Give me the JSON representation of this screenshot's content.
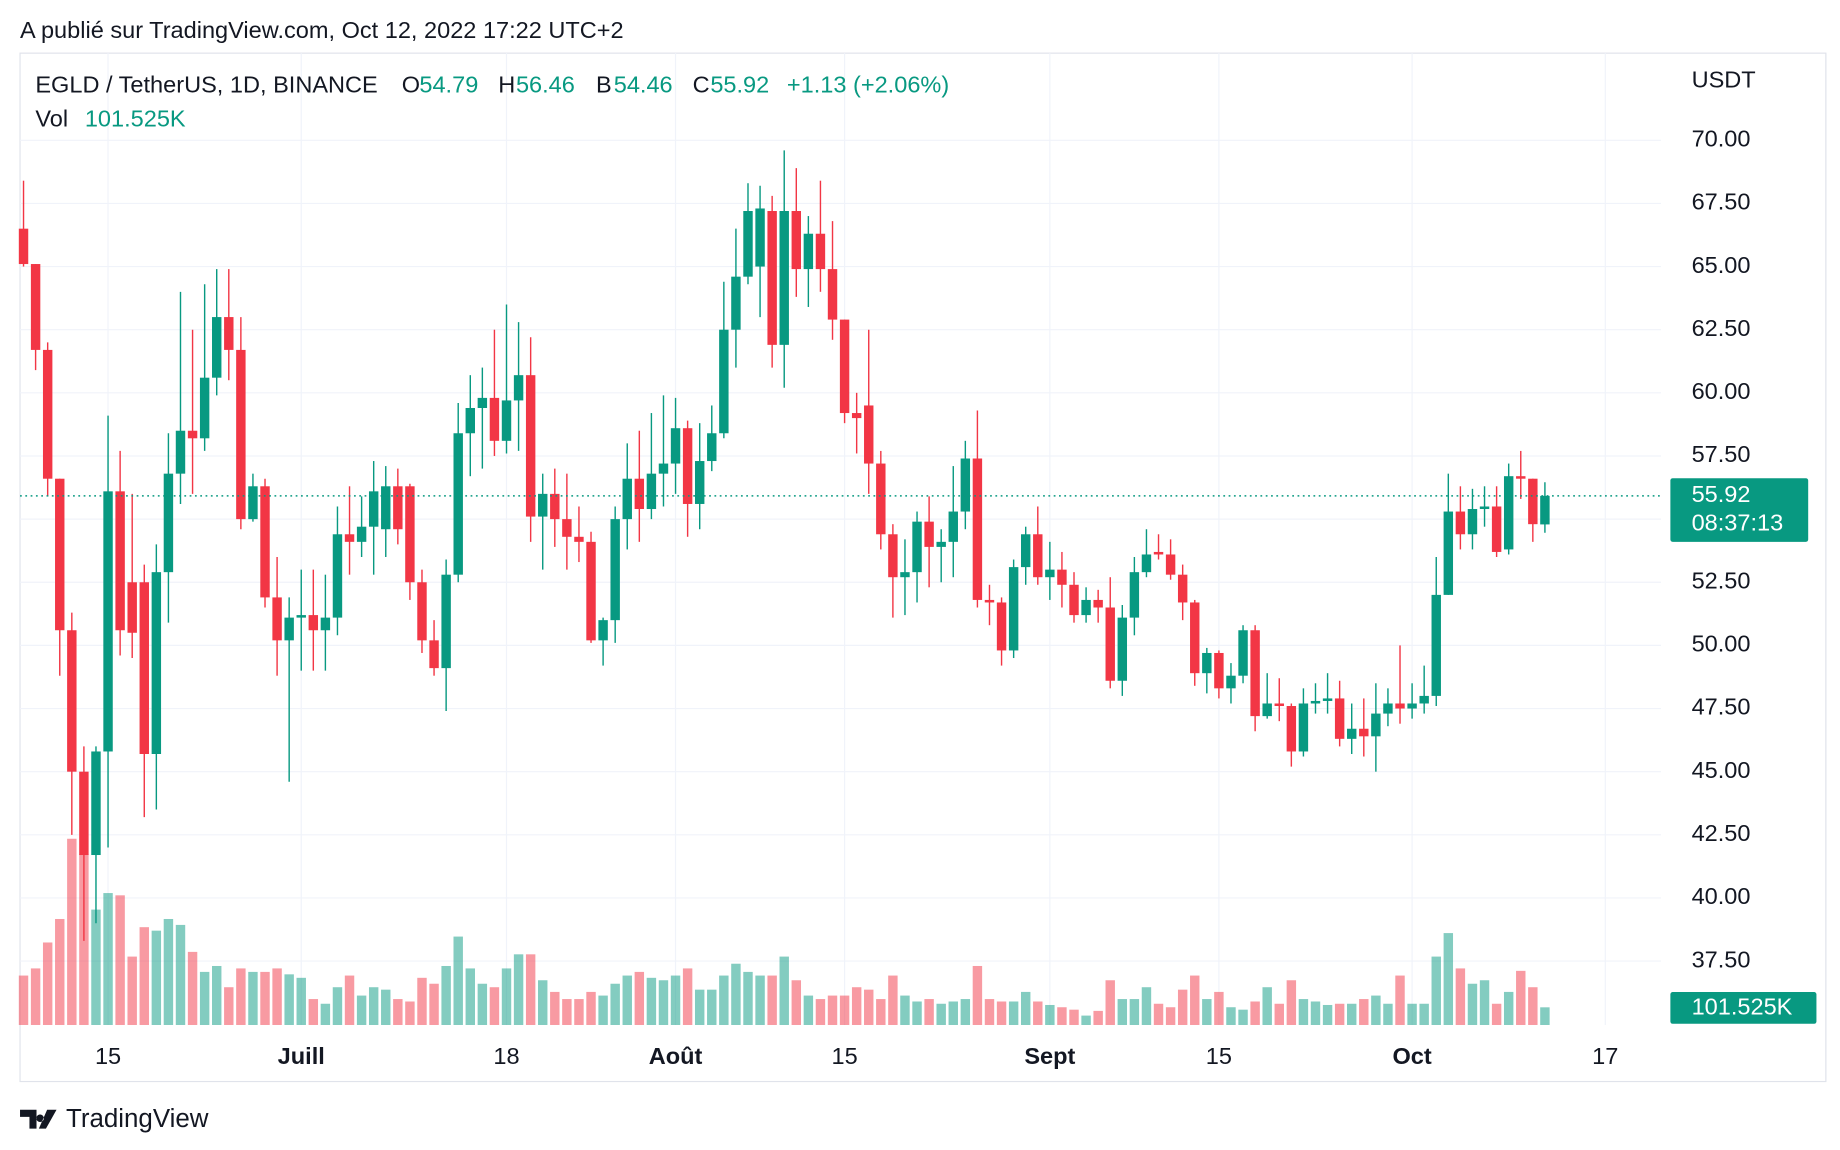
{
  "published": "A publié sur TradingView.com, Oct 12, 2022 17:22 UTC+2",
  "footer": "TradingView",
  "chart_data": {
    "type": "candlestick",
    "symbol": "EGLD / TetherUS, 1D, BINANCE",
    "currency": "USDT",
    "ohlc_letters": [
      "O",
      "H",
      "B",
      "C"
    ],
    "change_label": "+1.13 (+2.06%)",
    "countdown": "08:37:13",
    "up_color": "#089981",
    "down_color": "#f23645",
    "grid": true,
    "xlim": [
      -0.29,
      135.61
    ],
    "xticks": [
      {
        "value": 7,
        "label": "15"
      },
      {
        "value": 23,
        "label": "Juill"
      },
      {
        "value": 40,
        "label": "18"
      },
      {
        "value": 54,
        "label": "Août"
      },
      {
        "value": 68,
        "label": "15"
      },
      {
        "value": 85,
        "label": "Sept"
      },
      {
        "value": 99,
        "label": "15"
      },
      {
        "value": 115,
        "label": "Oct"
      },
      {
        "value": 131,
        "label": "17"
      }
    ],
    "ylim": [
      34.97,
      73.45
    ],
    "yticks": [
      {
        "value": 37.5,
        "label": "37.50"
      },
      {
        "value": 40,
        "label": "40.00"
      },
      {
        "value": 42.5,
        "label": "42.50"
      },
      {
        "value": 45,
        "label": "45.00"
      },
      {
        "value": 47.5,
        "label": "47.50"
      },
      {
        "value": 50,
        "label": "50.00"
      },
      {
        "value": 52.5,
        "label": "52.50"
      },
      {
        "value": 55,
        "label": "55.00"
      },
      {
        "value": 57.5,
        "label": "57.50"
      },
      {
        "value": 60,
        "label": "60.00"
      },
      {
        "value": 62.5,
        "label": "62.50"
      },
      {
        "value": 65,
        "label": "65.00"
      },
      {
        "value": 67.5,
        "label": "67.50"
      },
      {
        "value": 70,
        "label": "70.00"
      }
    ],
    "open": [
      66.5,
      65.1,
      61.7,
      56.6,
      50.6,
      45.0,
      41.7,
      45.8,
      56.1,
      52.5,
      52.5,
      45.7,
      52.9,
      56.8,
      58.5,
      58.2,
      60.6,
      63.0,
      61.7,
      55.0,
      56.3,
      51.9,
      50.2,
      51.1,
      51.2,
      50.6,
      51.1,
      54.4,
      54.1,
      54.7,
      54.6,
      56.3,
      56.3,
      52.5,
      50.2,
      49.1,
      52.8,
      58.4,
      59.4,
      59.8,
      58.1,
      59.7,
      60.7,
      55.1,
      56.0,
      55.0,
      54.3,
      54.1,
      50.2,
      51.0,
      55.0,
      56.6,
      55.4,
      56.8,
      57.2,
      58.6,
      55.6,
      57.3,
      58.4,
      62.5,
      64.6,
      65.0,
      67.2,
      61.9,
      67.2,
      64.9,
      66.3,
      64.9,
      62.9,
      59.2,
      59.5,
      57.2,
      54.4,
      52.7,
      52.9,
      54.9,
      53.9,
      54.1,
      55.3,
      57.4,
      51.8,
      51.7,
      49.8,
      53.1,
      54.4,
      52.7,
      53.0,
      52.4,
      51.2,
      51.8,
      51.5,
      48.6,
      51.1,
      52.9,
      53.7,
      53.6,
      52.8,
      51.7,
      48.9,
      49.7,
      48.3,
      48.8,
      50.6,
      47.2,
      47.7,
      47.6,
      45.8,
      47.7,
      47.8,
      47.9,
      46.3,
      46.7,
      46.4,
      47.3,
      47.7,
      47.5,
      47.7,
      48.0,
      52.0,
      55.3,
      54.4,
      55.4,
      55.5,
      53.8,
      56.7,
      56.6,
      54.79
    ],
    "high": [
      68.4,
      65.1,
      62.0,
      56.6,
      51.3,
      46.0,
      46.0,
      59.1,
      57.7,
      56.0,
      53.2,
      54.0,
      58.4,
      64.0,
      62.5,
      64.3,
      64.9,
      64.9,
      63.0,
      56.8,
      56.6,
      53.5,
      51.9,
      53.0,
      53.0,
      52.8,
      55.5,
      56.3,
      55.9,
      57.3,
      57.1,
      57.0,
      56.4,
      53.0,
      51.0,
      53.4,
      59.6,
      60.7,
      61.0,
      62.5,
      63.5,
      62.8,
      62.2,
      56.8,
      57.0,
      56.8,
      55.5,
      54.5,
      51.1,
      55.5,
      58.0,
      58.5,
      59.2,
      59.9,
      59.8,
      58.9,
      58.8,
      59.5,
      64.4,
      66.5,
      68.3,
      68.2,
      67.8,
      69.6,
      68.9,
      67.0,
      68.4,
      66.8,
      62.9,
      60.0,
      62.5,
      57.7,
      54.8,
      54.2,
      55.3,
      55.9,
      54.6,
      57.1,
      58.1,
      59.3,
      52.4,
      51.9,
      53.4,
      54.7,
      55.5,
      54.1,
      53.7,
      52.9,
      52.3,
      52.2,
      52.7,
      51.6,
      53.5,
      54.6,
      54.4,
      54.2,
      53.2,
      51.8,
      49.9,
      49.8,
      49.3,
      50.8,
      50.8,
      48.9,
      48.7,
      47.7,
      48.3,
      48.5,
      48.9,
      48.6,
      47.7,
      47.9,
      48.5,
      48.3,
      50.0,
      48.5,
      49.2,
      53.5,
      56.8,
      56.3,
      56.2,
      56.3,
      56.3,
      57.2,
      57.7,
      56.6,
      56.46
    ],
    "low": [
      65.0,
      60.9,
      55.9,
      48.8,
      42.5,
      38.3,
      39.0,
      42.0,
      49.6,
      49.5,
      43.2,
      43.5,
      50.9,
      55.6,
      56.0,
      57.7,
      59.9,
      60.5,
      54.6,
      54.9,
      51.5,
      48.8,
      44.6,
      49.0,
      49.0,
      49.0,
      50.4,
      52.8,
      53.5,
      52.8,
      53.5,
      54.0,
      51.8,
      49.7,
      48.8,
      47.4,
      52.5,
      56.7,
      57.0,
      57.5,
      57.6,
      57.7,
      54.1,
      53.0,
      53.9,
      53.0,
      53.3,
      50.1,
      49.2,
      50.1,
      53.8,
      54.1,
      55.0,
      55.5,
      56.0,
      54.3,
      54.6,
      56.9,
      58.2,
      61.0,
      64.3,
      63.0,
      61.0,
      60.2,
      63.8,
      63.4,
      64.0,
      62.1,
      58.8,
      57.6,
      56.0,
      53.8,
      51.1,
      51.2,
      51.7,
      52.3,
      52.5,
      52.7,
      54.6,
      51.5,
      50.8,
      49.2,
      49.5,
      52.4,
      52.4,
      51.8,
      51.5,
      50.9,
      50.9,
      50.9,
      48.3,
      48.0,
      50.4,
      52.7,
      53.4,
      52.6,
      51.0,
      48.4,
      48.1,
      47.9,
      47.7,
      48.5,
      46.6,
      47.1,
      47.0,
      45.2,
      45.6,
      47.3,
      47.3,
      46.0,
      45.7,
      45.6,
      45.0,
      46.8,
      46.9,
      47.1,
      47.3,
      47.6,
      52.0,
      53.8,
      53.8,
      54.7,
      53.5,
      53.6,
      55.8,
      54.1,
      54.46
    ],
    "close": [
      65.1,
      61.7,
      56.6,
      50.6,
      45.0,
      41.7,
      45.8,
      56.1,
      50.6,
      50.5,
      45.7,
      52.9,
      56.8,
      58.5,
      58.2,
      60.6,
      63.0,
      61.7,
      55.0,
      56.3,
      51.9,
      50.2,
      51.1,
      51.2,
      50.6,
      51.1,
      54.4,
      54.1,
      54.7,
      56.1,
      56.3,
      54.6,
      52.5,
      50.2,
      49.1,
      52.8,
      58.4,
      59.4,
      59.8,
      58.1,
      59.7,
      60.7,
      55.1,
      56.0,
      55.0,
      54.3,
      54.1,
      50.2,
      51.0,
      55.0,
      56.6,
      55.4,
      56.8,
      57.2,
      58.6,
      55.6,
      57.3,
      58.4,
      62.5,
      64.6,
      67.2,
      67.3,
      61.9,
      67.2,
      64.9,
      66.3,
      64.9,
      62.9,
      59.2,
      59.0,
      57.2,
      54.4,
      52.7,
      52.9,
      54.9,
      53.9,
      54.1,
      55.3,
      57.4,
      51.8,
      51.7,
      49.8,
      53.1,
      54.4,
      52.7,
      53.0,
      52.4,
      51.2,
      51.8,
      51.5,
      48.6,
      51.1,
      52.9,
      53.6,
      53.6,
      52.8,
      51.7,
      48.9,
      49.7,
      48.3,
      48.8,
      50.6,
      47.2,
      47.7,
      47.6,
      45.8,
      47.7,
      47.8,
      47.9,
      46.3,
      46.7,
      46.4,
      47.3,
      47.7,
      47.5,
      47.7,
      48.0,
      52.0,
      55.3,
      54.4,
      55.4,
      55.5,
      53.7,
      56.7,
      56.6,
      54.8,
      55.92
    ],
    "volume": {
      "name": "Vol",
      "last_label": "101.525K",
      "vlim": [
        0,
        1218.3
      ],
      "values": [
        284,
        325,
        474,
        609,
        1070,
        982,
        663,
        758,
        745,
        393,
        562,
        542,
        609,
        575,
        420,
        305,
        339,
        217,
        325,
        305,
        305,
        325,
        291,
        271,
        149,
        122,
        217,
        284,
        169,
        217,
        203,
        149,
        135,
        271,
        237,
        339,
        508,
        325,
        237,
        217,
        325,
        406,
        406,
        257,
        190,
        149,
        149,
        190,
        169,
        237,
        284,
        305,
        271,
        257,
        284,
        325,
        203,
        203,
        284,
        352,
        305,
        284,
        284,
        393,
        257,
        169,
        149,
        169,
        169,
        217,
        203,
        149,
        284,
        169,
        135,
        149,
        122,
        135,
        149,
        339,
        149,
        135,
        135,
        190,
        135,
        115,
        102,
        88,
        54,
        81,
        257,
        149,
        149,
        217,
        122,
        102,
        203,
        284,
        149,
        190,
        102,
        88,
        135,
        217,
        122,
        257,
        149,
        135,
        115,
        122,
        122,
        149,
        169,
        122,
        284,
        122,
        122,
        393,
        528,
        325,
        237,
        257,
        122,
        190,
        311,
        217,
        101.525
      ]
    }
  }
}
